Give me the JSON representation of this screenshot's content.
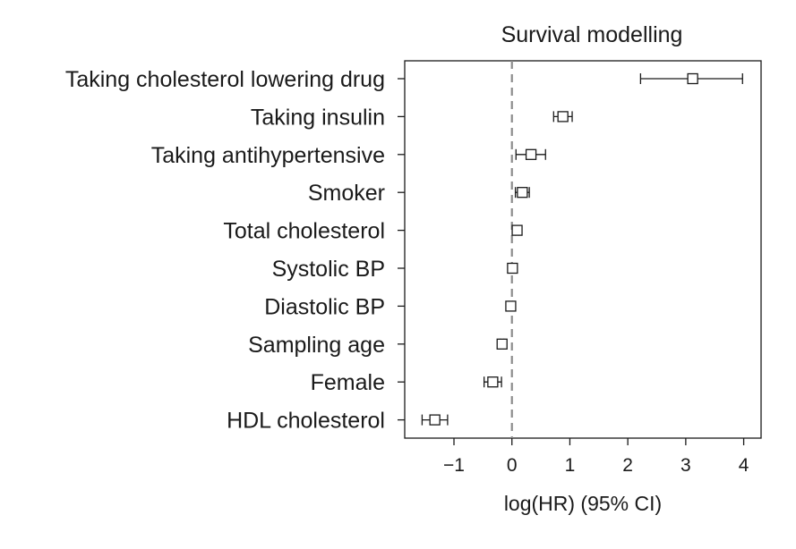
{
  "chart_data": {
    "type": "forest",
    "title": "Survival modelling",
    "xlabel": "log(HR) (95% CI)",
    "ylabel": "",
    "xlim": [
      -1.85,
      4.3
    ],
    "xticks": [
      -1,
      0,
      1,
      2,
      3,
      4
    ],
    "xtick_labels": [
      "−1",
      "0",
      "1",
      "2",
      "3",
      "4"
    ],
    "reference_line": 0,
    "reference_line_style": "dashed gray",
    "grid": false,
    "marker": "open-square",
    "categories": [
      "Taking cholesterol lowering drug",
      "Taking insulin",
      "Taking antihypertensive",
      "Smoker",
      "Total cholesterol",
      "Systolic BP",
      "Diastolic BP",
      "Sampling age",
      "Female",
      "HDL cholesterol"
    ],
    "estimates": [
      3.12,
      0.88,
      0.33,
      0.18,
      0.09,
      0.01,
      -0.02,
      -0.17,
      -0.33,
      -1.33
    ],
    "ci_lower": [
      2.22,
      0.72,
      0.07,
      0.06,
      0.06,
      -0.02,
      -0.05,
      -0.2,
      -0.48,
      -1.55
    ],
    "ci_upper": [
      3.98,
      1.04,
      0.58,
      0.3,
      0.12,
      0.04,
      0.01,
      -0.14,
      -0.18,
      -1.11
    ]
  }
}
